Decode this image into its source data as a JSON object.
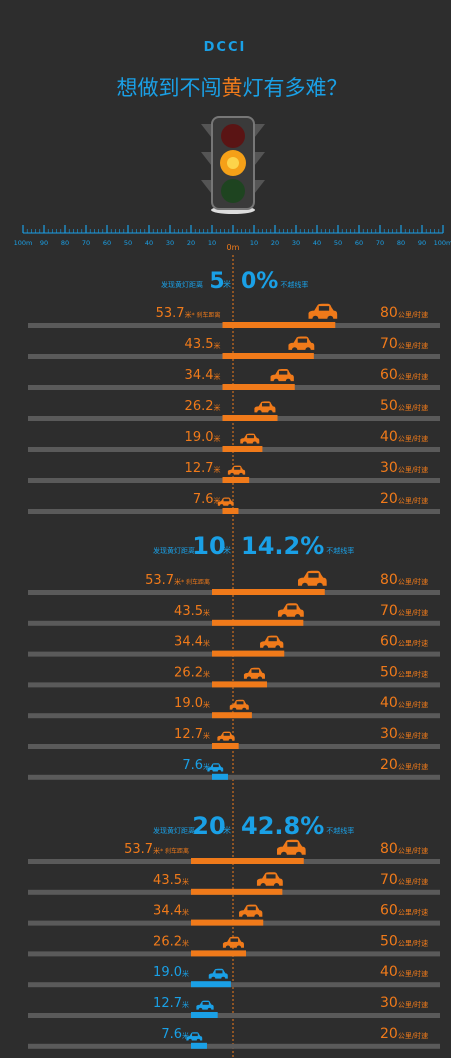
{
  "header": {
    "logo": "DCCI",
    "title_parts": [
      "想做到不闯",
      "黄",
      "灯有多难？"
    ]
  },
  "ruler": {
    "ticks": [
      {
        "value": -100,
        "label": "100m"
      },
      {
        "value": -90,
        "label": "90"
      },
      {
        "value": -80,
        "label": "80"
      },
      {
        "value": -70,
        "label": "70"
      },
      {
        "value": -60,
        "label": "60"
      },
      {
        "value": -50,
        "label": "50"
      },
      {
        "value": -40,
        "label": "40"
      },
      {
        "value": -30,
        "label": "30"
      },
      {
        "value": -20,
        "label": "20"
      },
      {
        "value": -10,
        "label": "10"
      },
      {
        "value": 0,
        "label": "0m"
      },
      {
        "value": 10,
        "label": "10"
      },
      {
        "value": 20,
        "label": "20"
      },
      {
        "value": 30,
        "label": "30"
      },
      {
        "value": 40,
        "label": "40"
      },
      {
        "value": 50,
        "label": "50"
      },
      {
        "value": 60,
        "label": "60"
      },
      {
        "value": 70,
        "label": "70"
      },
      {
        "value": 80,
        "label": "80"
      },
      {
        "value": 90,
        "label": "90"
      },
      {
        "value": 100,
        "label": "100m"
      }
    ]
  },
  "units": {
    "meter": "米",
    "speed": "公里/时速"
  },
  "sections": [
    {
      "distance_label": "发现黄灯距离",
      "distance": 5,
      "rate": {
        "value": 0,
        "label": "0%"
      },
      "rate_label": "不越线率",
      "braking_note": "* 刹车距离",
      "rows": [
        {
          "braking": {
            "value": 53.7,
            "label": "53.7"
          },
          "speed": 80
        },
        {
          "braking": {
            "value": 43.5,
            "label": "43.5"
          },
          "speed": 70
        },
        {
          "braking": {
            "value": 34.4,
            "label": "34.4"
          },
          "speed": 60
        },
        {
          "braking": {
            "value": 26.2,
            "label": "26.2"
          },
          "speed": 50
        },
        {
          "braking": {
            "value": 19.0,
            "label": "19.0"
          },
          "speed": 40
        },
        {
          "braking": {
            "value": 12.7,
            "label": "12.7"
          },
          "speed": 30
        },
        {
          "braking": {
            "value": 7.6,
            "label": "7.6"
          },
          "speed": 20
        }
      ]
    },
    {
      "distance_label": "发现黄灯距离",
      "distance": 10,
      "rate": {
        "value": 14.2,
        "label": "14.2%"
      },
      "rate_label": "不越线率",
      "braking_note": "* 刹车距离",
      "rows": [
        {
          "braking": {
            "value": 53.7,
            "label": "53.7"
          },
          "speed": 80
        },
        {
          "braking": {
            "value": 43.5,
            "label": "43.5"
          },
          "speed": 70
        },
        {
          "braking": {
            "value": 34.4,
            "label": "34.4"
          },
          "speed": 60
        },
        {
          "braking": {
            "value": 26.2,
            "label": "26.2"
          },
          "speed": 50
        },
        {
          "braking": {
            "value": 19.0,
            "label": "19.0"
          },
          "speed": 40
        },
        {
          "braking": {
            "value": 12.7,
            "label": "12.7"
          },
          "speed": 30
        },
        {
          "braking": {
            "value": 7.6,
            "label": "7.6"
          },
          "speed": 20
        }
      ]
    },
    {
      "distance_label": "发现黄灯距离",
      "distance": 20,
      "rate": {
        "value": 42.8,
        "label": "42.8%"
      },
      "rate_label": "不越线率",
      "braking_note": "* 刹车距离",
      "rows": [
        {
          "braking": {
            "value": 53.7,
            "label": "53.7"
          },
          "speed": 80
        },
        {
          "braking": {
            "value": 43.5,
            "label": "43.5"
          },
          "speed": 70
        },
        {
          "braking": {
            "value": 34.4,
            "label": "34.4"
          },
          "speed": 60
        },
        {
          "braking": {
            "value": 26.2,
            "label": "26.2"
          },
          "speed": 50
        },
        {
          "braking": {
            "value": 19.0,
            "label": "19.0"
          },
          "speed": 40
        },
        {
          "braking": {
            "value": 12.7,
            "label": "12.7"
          },
          "speed": 30
        },
        {
          "braking": {
            "value": 7.6,
            "label": "7.6"
          },
          "speed": 20
        }
      ]
    }
  ]
}
